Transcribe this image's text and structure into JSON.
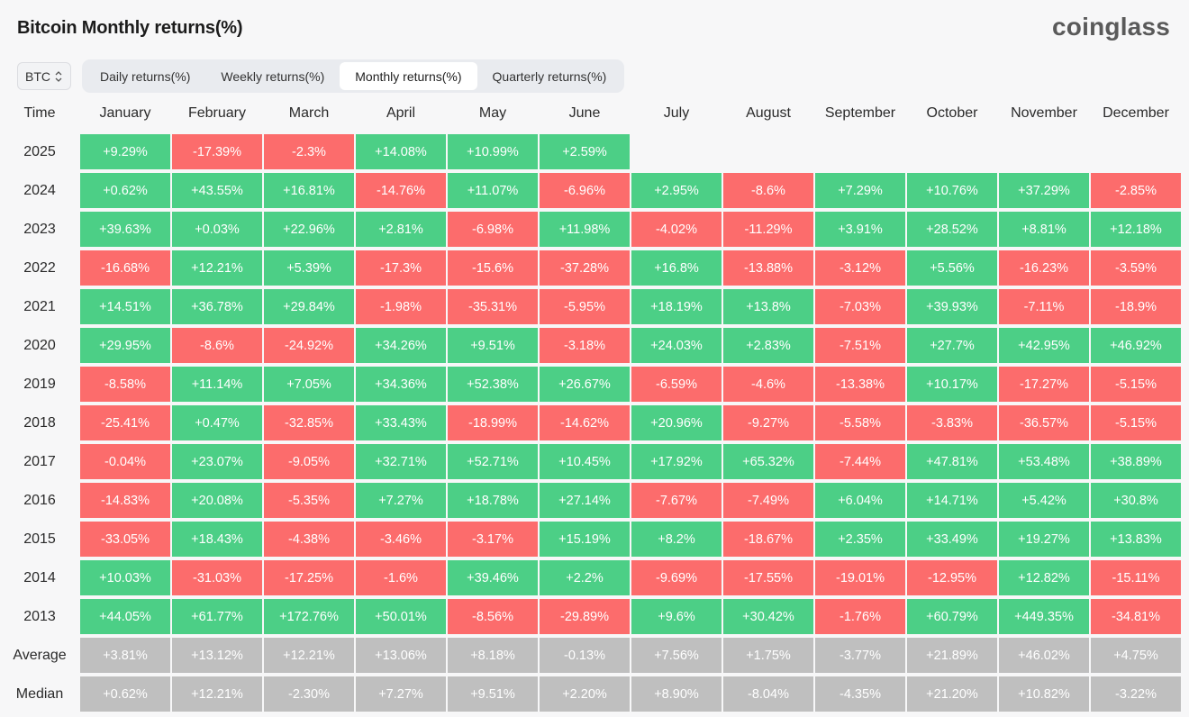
{
  "title": "Bitcoin Monthly returns(%)",
  "logo": "coinglass",
  "asset_select": {
    "value": "BTC"
  },
  "tabs": [
    {
      "label": "Daily returns(%)",
      "active": false
    },
    {
      "label": "Weekly returns(%)",
      "active": false
    },
    {
      "label": "Monthly returns(%)",
      "active": true
    },
    {
      "label": "Quarterly returns(%)",
      "active": false
    }
  ],
  "colors": {
    "positive": "#4ccf86",
    "negative": "#fc6c6c",
    "summary": "#bfbfbf"
  },
  "table": {
    "corner_label": "Time",
    "columns": [
      "January",
      "February",
      "March",
      "April",
      "May",
      "June",
      "July",
      "August",
      "September",
      "October",
      "November",
      "December"
    ],
    "rows": [
      {
        "label": "2025",
        "values": [
          "+9.29%",
          "-17.39%",
          "-2.3%",
          "+14.08%",
          "+10.99%",
          "+2.59%",
          "",
          "",
          "",
          "",
          "",
          ""
        ]
      },
      {
        "label": "2024",
        "values": [
          "+0.62%",
          "+43.55%",
          "+16.81%",
          "-14.76%",
          "+11.07%",
          "-6.96%",
          "+2.95%",
          "-8.6%",
          "+7.29%",
          "+10.76%",
          "+37.29%",
          "-2.85%"
        ]
      },
      {
        "label": "2023",
        "values": [
          "+39.63%",
          "+0.03%",
          "+22.96%",
          "+2.81%",
          "-6.98%",
          "+11.98%",
          "-4.02%",
          "-11.29%",
          "+3.91%",
          "+28.52%",
          "+8.81%",
          "+12.18%"
        ]
      },
      {
        "label": "2022",
        "values": [
          "-16.68%",
          "+12.21%",
          "+5.39%",
          "-17.3%",
          "-15.6%",
          "-37.28%",
          "+16.8%",
          "-13.88%",
          "-3.12%",
          "+5.56%",
          "-16.23%",
          "-3.59%"
        ]
      },
      {
        "label": "2021",
        "values": [
          "+14.51%",
          "+36.78%",
          "+29.84%",
          "-1.98%",
          "-35.31%",
          "-5.95%",
          "+18.19%",
          "+13.8%",
          "-7.03%",
          "+39.93%",
          "-7.11%",
          "-18.9%"
        ]
      },
      {
        "label": "2020",
        "values": [
          "+29.95%",
          "-8.6%",
          "-24.92%",
          "+34.26%",
          "+9.51%",
          "-3.18%",
          "+24.03%",
          "+2.83%",
          "-7.51%",
          "+27.7%",
          "+42.95%",
          "+46.92%"
        ]
      },
      {
        "label": "2019",
        "values": [
          "-8.58%",
          "+11.14%",
          "+7.05%",
          "+34.36%",
          "+52.38%",
          "+26.67%",
          "-6.59%",
          "-4.6%",
          "-13.38%",
          "+10.17%",
          "-17.27%",
          "-5.15%"
        ]
      },
      {
        "label": "2018",
        "values": [
          "-25.41%",
          "+0.47%",
          "-32.85%",
          "+33.43%",
          "-18.99%",
          "-14.62%",
          "+20.96%",
          "-9.27%",
          "-5.58%",
          "-3.83%",
          "-36.57%",
          "-5.15%"
        ]
      },
      {
        "label": "2017",
        "values": [
          "-0.04%",
          "+23.07%",
          "-9.05%",
          "+32.71%",
          "+52.71%",
          "+10.45%",
          "+17.92%",
          "+65.32%",
          "-7.44%",
          "+47.81%",
          "+53.48%",
          "+38.89%"
        ]
      },
      {
        "label": "2016",
        "values": [
          "-14.83%",
          "+20.08%",
          "-5.35%",
          "+7.27%",
          "+18.78%",
          "+27.14%",
          "-7.67%",
          "-7.49%",
          "+6.04%",
          "+14.71%",
          "+5.42%",
          "+30.8%"
        ]
      },
      {
        "label": "2015",
        "values": [
          "-33.05%",
          "+18.43%",
          "-4.38%",
          "-3.46%",
          "-3.17%",
          "+15.19%",
          "+8.2%",
          "-18.67%",
          "+2.35%",
          "+33.49%",
          "+19.27%",
          "+13.83%"
        ]
      },
      {
        "label": "2014",
        "values": [
          "+10.03%",
          "-31.03%",
          "-17.25%",
          "-1.6%",
          "+39.46%",
          "+2.2%",
          "-9.69%",
          "-17.55%",
          "-19.01%",
          "-12.95%",
          "+12.82%",
          "-15.11%"
        ]
      },
      {
        "label": "2013",
        "values": [
          "+44.05%",
          "+61.77%",
          "+172.76%",
          "+50.01%",
          "-8.56%",
          "-29.89%",
          "+9.6%",
          "+30.42%",
          "-1.76%",
          "+60.79%",
          "+449.35%",
          "-34.81%"
        ]
      }
    ],
    "summary": [
      {
        "label": "Average",
        "values": [
          "+3.81%",
          "+13.12%",
          "+12.21%",
          "+13.06%",
          "+8.18%",
          "-0.13%",
          "+7.56%",
          "+1.75%",
          "-3.77%",
          "+21.89%",
          "+46.02%",
          "+4.75%"
        ]
      },
      {
        "label": "Median",
        "values": [
          "+0.62%",
          "+12.21%",
          "-2.30%",
          "+7.27%",
          "+9.51%",
          "+2.20%",
          "+8.90%",
          "-8.04%",
          "-4.35%",
          "+21.20%",
          "+10.82%",
          "-3.22%"
        ]
      }
    ]
  }
}
